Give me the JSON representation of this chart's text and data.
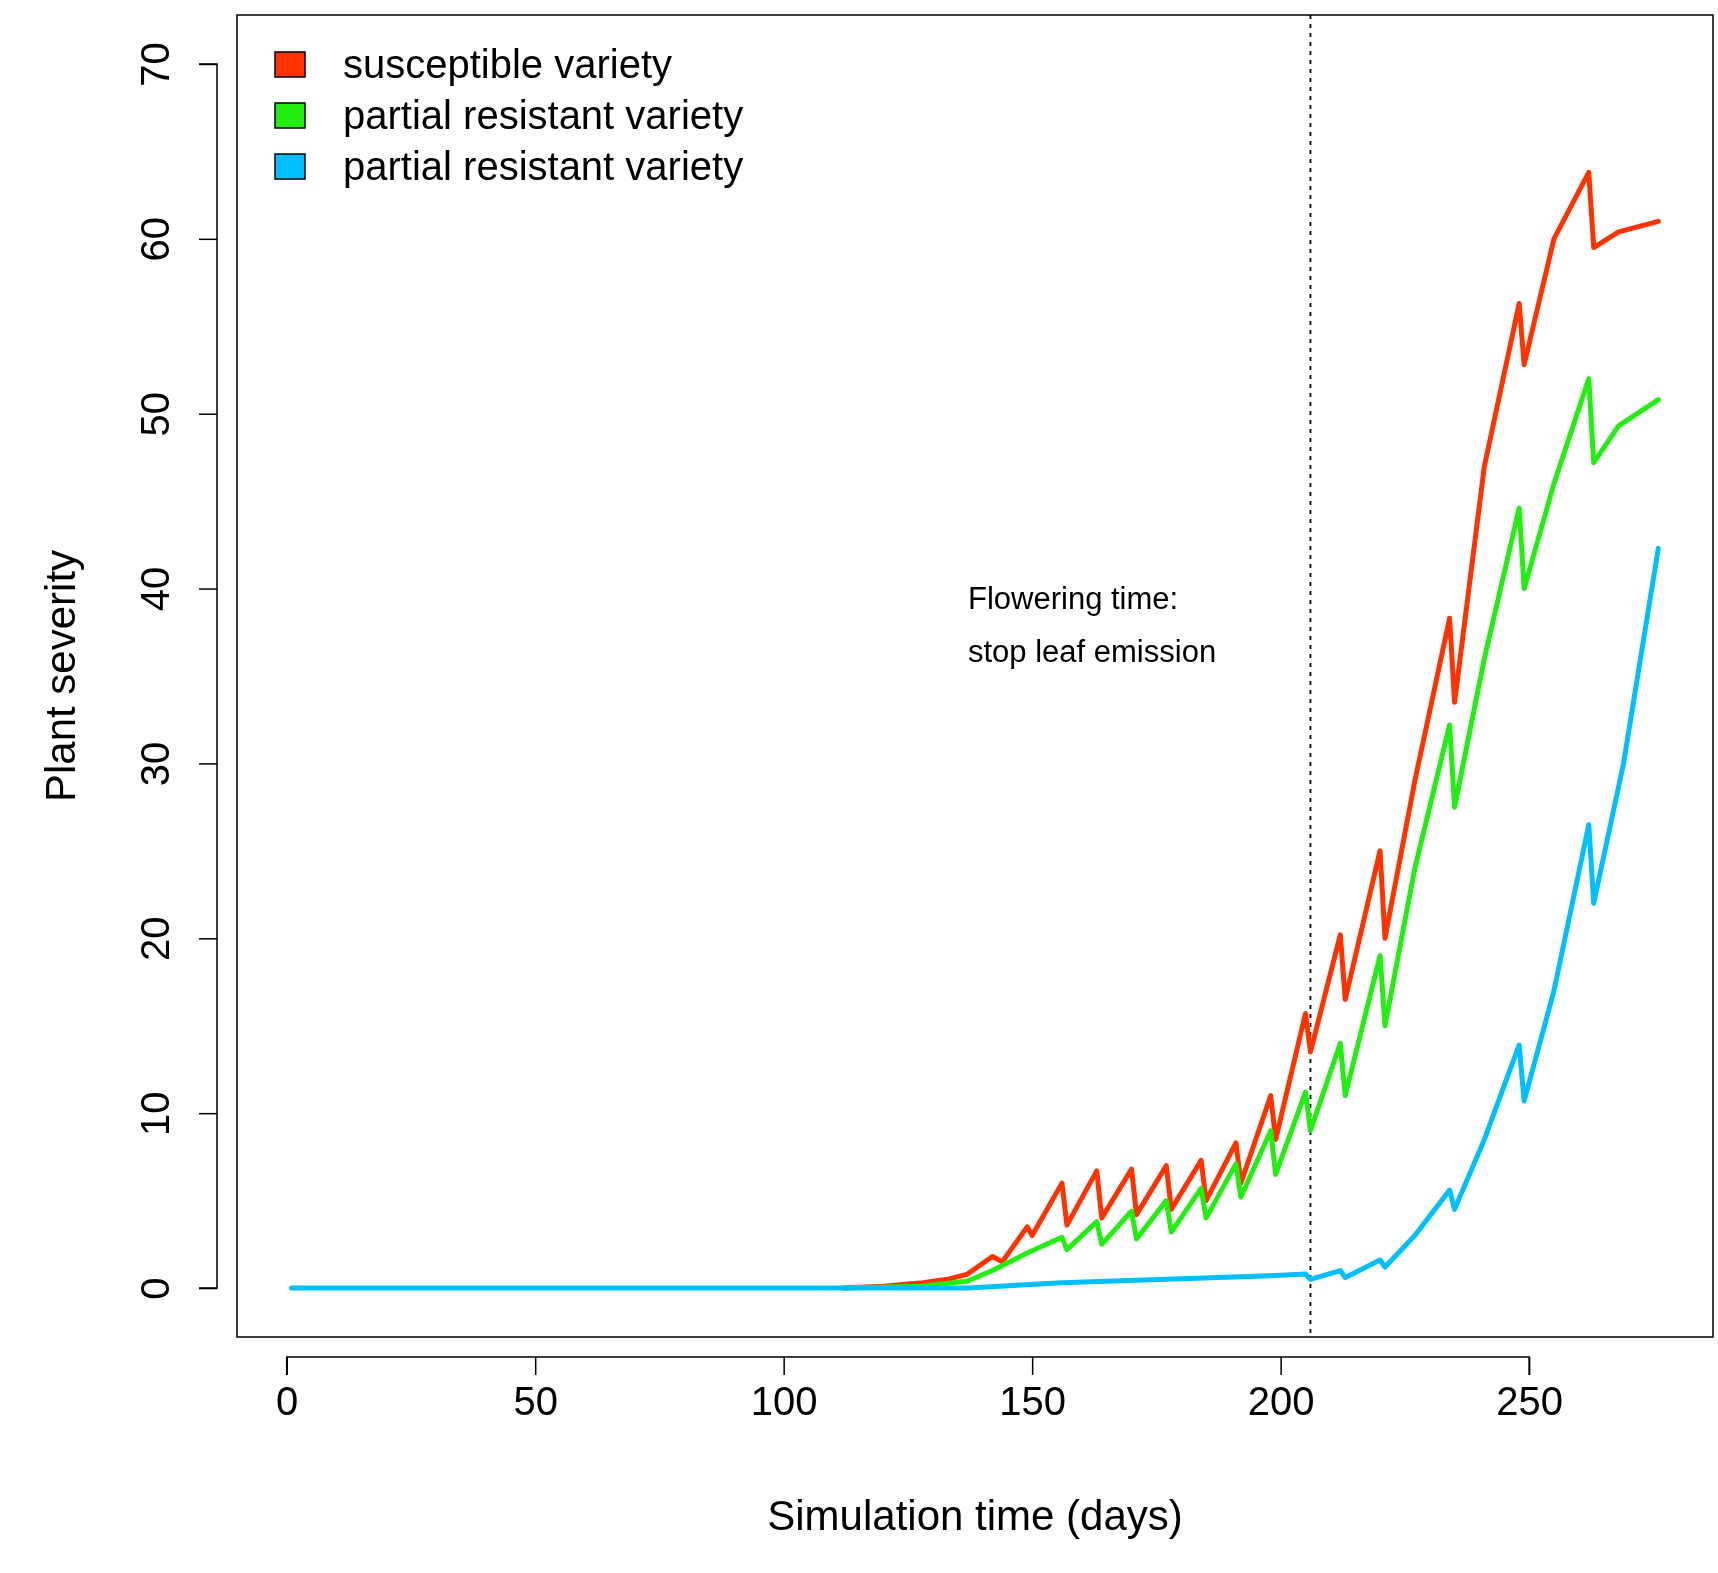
{
  "chart_data": {
    "type": "line",
    "xlabel": "Simulation time (days)",
    "ylabel": "Plant severity",
    "xlim": [
      -10,
      287
    ],
    "ylim": [
      -2.8,
      72.8
    ],
    "xticks": [
      0,
      50,
      100,
      150,
      200,
      250
    ],
    "yticks": [
      0,
      10,
      20,
      30,
      40,
      50,
      60,
      70
    ],
    "legend": "top left",
    "grid": false,
    "line_style": "solid",
    "marker": "none",
    "ref_lines": [
      {
        "axis": "x",
        "value": 206,
        "line_style": "dotted",
        "color": "#000000"
      }
    ],
    "annotations": [
      "Flowering time:\nstop leaf emission"
    ],
    "series": [
      {
        "name": "susceptible variety",
        "color": "#ff3300",
        "x": [
          112,
          120,
          128,
          133,
          137,
          142,
          144,
          149,
          150,
          153,
          156,
          157,
          163,
          164,
          170,
          171,
          177,
          178,
          184,
          185,
          191,
          192,
          198,
          199,
          205,
          206,
          212,
          213,
          220,
          221,
          227,
          234,
          235,
          241,
          248,
          249,
          255,
          262,
          263,
          268,
          276
        ],
        "values": [
          0,
          0.1,
          0.3,
          0.5,
          0.8,
          1.8,
          1.5,
          3.5,
          3.0,
          4.5,
          6.0,
          3.6,
          6.7,
          4.0,
          6.8,
          4.2,
          7.0,
          4.5,
          7.3,
          5.0,
          8.3,
          6.0,
          11.0,
          8.5,
          15.7,
          13.5,
          20.2,
          16.5,
          25.0,
          20.0,
          29,
          38.3,
          33.5,
          47,
          56.3,
          52.8,
          60,
          63.8,
          59.5,
          60.4,
          61.0
        ]
      },
      {
        "name": "partial resistant variety",
        "color": "#22ee11",
        "x": [
          112,
          128,
          137,
          142,
          149,
          156,
          157,
          163,
          164,
          170,
          171,
          177,
          178,
          184,
          185,
          191,
          192,
          198,
          199,
          205,
          206,
          212,
          213,
          220,
          221,
          227,
          234,
          235,
          241,
          248,
          249,
          255,
          262,
          263,
          268,
          276
        ],
        "values": [
          0,
          0.1,
          0.4,
          1.0,
          2.0,
          2.9,
          2.2,
          3.8,
          2.5,
          4.4,
          2.8,
          5.0,
          3.2,
          5.7,
          4.0,
          7.1,
          5.2,
          9.0,
          6.5,
          11.2,
          9.0,
          14.0,
          11.0,
          19.0,
          15.0,
          24,
          32.2,
          27.5,
          36,
          44.6,
          40.0,
          46,
          52.0,
          47.2,
          49.3,
          50.8
        ]
      },
      {
        "name": "partial resistant variety",
        "color": "#00bfff",
        "x": [
          1,
          137,
          156,
          177,
          198,
          205,
          206,
          212,
          213,
          220,
          221,
          227,
          234,
          235,
          241,
          248,
          249,
          255,
          262,
          263,
          269,
          276
        ],
        "values": [
          0,
          0,
          0.3,
          0.5,
          0.7,
          0.8,
          0.5,
          1.0,
          0.6,
          1.6,
          1.2,
          3.0,
          5.6,
          4.5,
          8.5,
          13.9,
          10.7,
          17,
          26.5,
          22,
          30,
          42.3
        ]
      }
    ]
  }
}
